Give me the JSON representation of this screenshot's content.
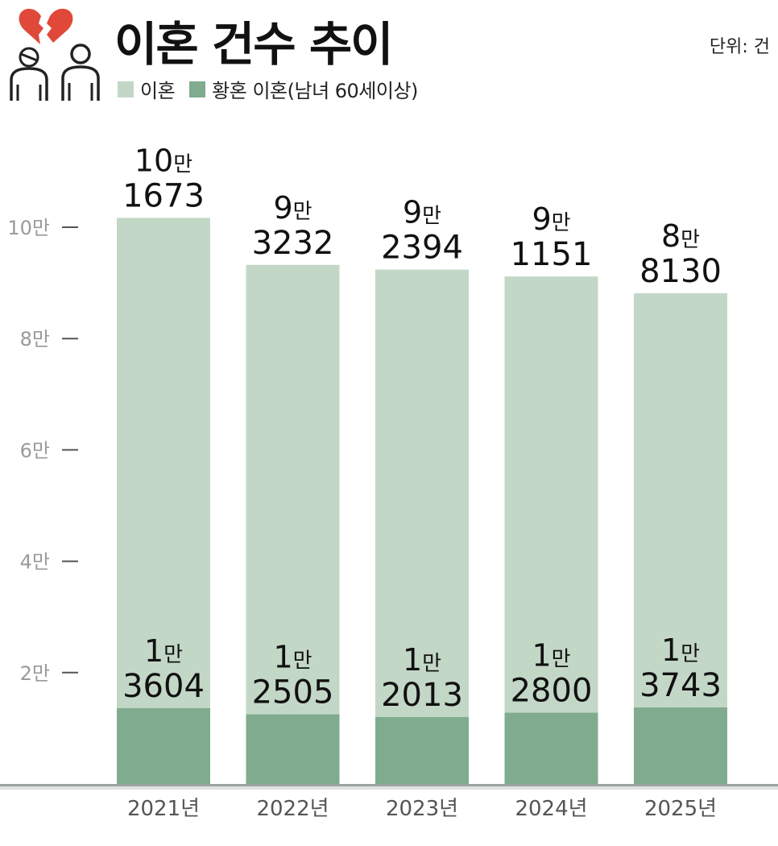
{
  "header": {
    "title": "이혼 건수 추이",
    "unit": "단위: 건",
    "icon": "couple-broken-heart-icon"
  },
  "legend": [
    {
      "label": "이혼",
      "color": "#c3d7c7"
    },
    {
      "label": "황혼 이혼(남녀 60세이상)",
      "color": "#80ab8e"
    }
  ],
  "chart_data": {
    "type": "bar",
    "stacking": "overlay",
    "categories": [
      "2021년",
      "2022년",
      "2023년",
      "2024년",
      "2025년"
    ],
    "series": [
      {
        "name": "이혼",
        "values": [
          101673,
          93232,
          92394,
          91151,
          88130
        ],
        "color": "#c3d7c7"
      },
      {
        "name": "황혼 이혼(남녀 60세이상)",
        "values": [
          13604,
          12505,
          12013,
          12800,
          13743
        ],
        "color": "#80ab8e"
      }
    ],
    "data_labels": {
      "이혼": [
        [
          "10",
          "만",
          "1673"
        ],
        [
          "9",
          "만",
          "3232"
        ],
        [
          "9",
          "만",
          "2394"
        ],
        [
          "9",
          "만",
          "1151"
        ],
        [
          "8",
          "만",
          "8130"
        ]
      ],
      "황혼 이혼(남녀 60세이상)": [
        [
          "1",
          "만",
          "3604"
        ],
        [
          "1",
          "만",
          "2505"
        ],
        [
          "1",
          "만",
          "2013"
        ],
        [
          "1",
          "만",
          "2800"
        ],
        [
          "1",
          "만",
          "3743"
        ]
      ]
    },
    "y_ticks": [
      {
        "value": 20000,
        "label": "2만"
      },
      {
        "value": 40000,
        "label": "4만"
      },
      {
        "value": 60000,
        "label": "6만"
      },
      {
        "value": 80000,
        "label": "8만"
      },
      {
        "value": 100000,
        "label": "10만"
      }
    ],
    "ylim": [
      0,
      100000
    ],
    "grid": false,
    "legend_position": "top-left"
  }
}
